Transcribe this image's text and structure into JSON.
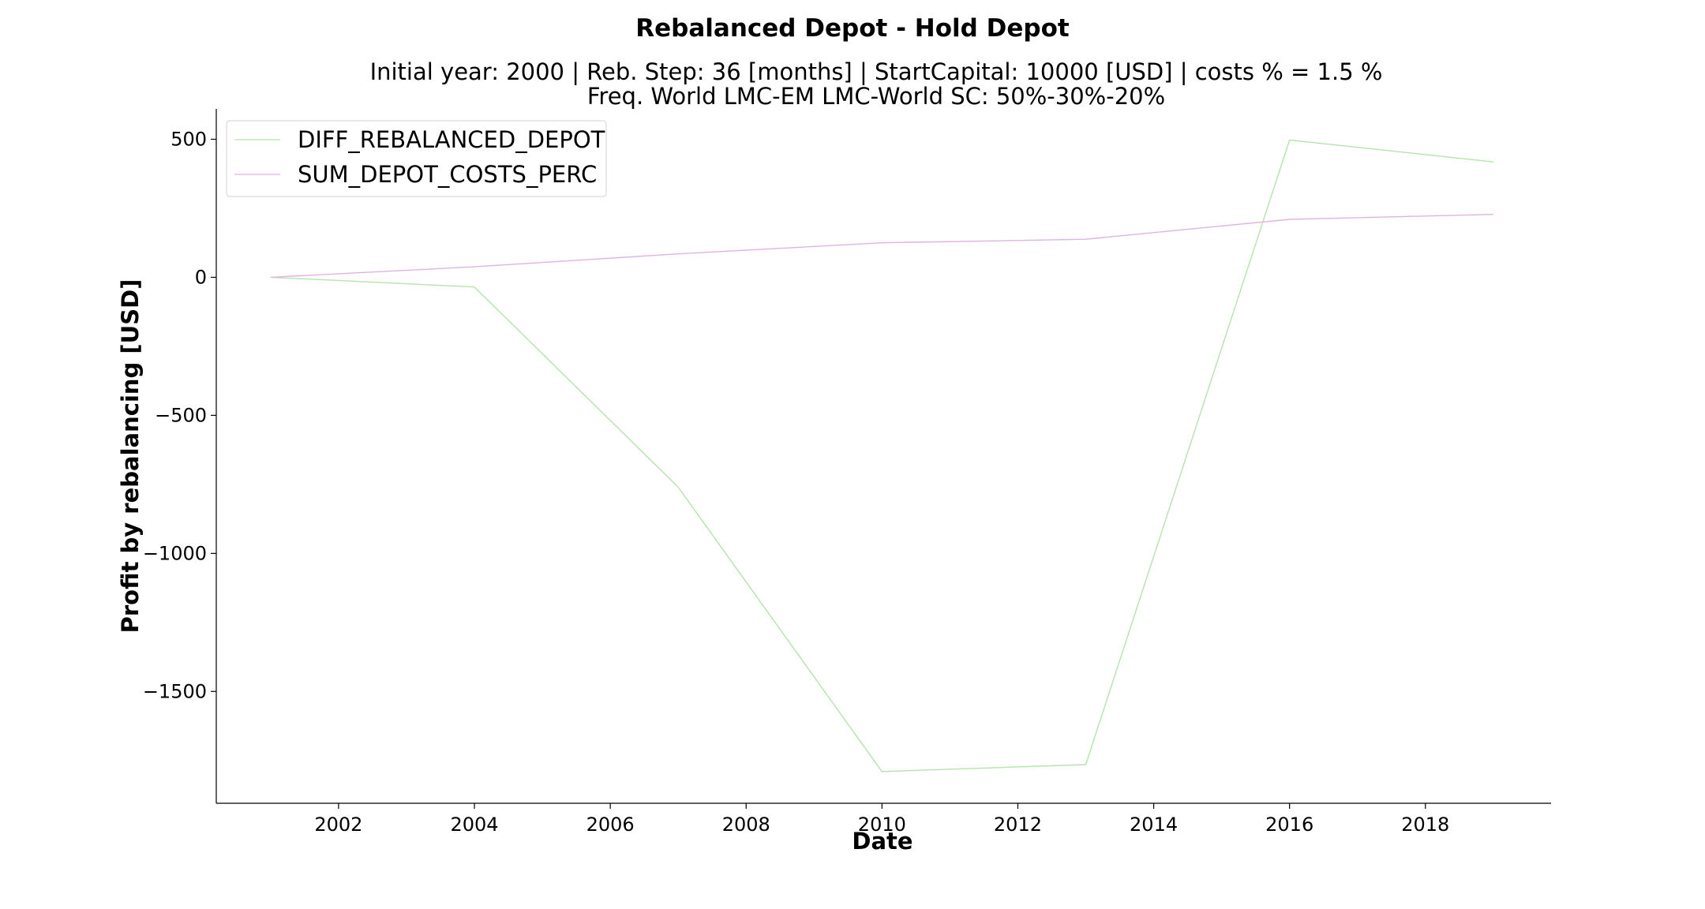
{
  "chart_data": {
    "type": "line",
    "title": "Rebalanced Depot - Hold Depot",
    "subtitle_lines": [
      "Initial year: 2000 | Reb. Step: 36 [months] | StartCapital: 10000 [USD] | costs % = 1.5 %",
      "Freq. World LMC-EM LMC-World SC: 50%-30%-20%"
    ],
    "xlabel": "Date",
    "ylabel": "Profit by rebalancing [USD]",
    "xlim": [
      2000.2,
      2019.85
    ],
    "ylim": [
      -1905,
      610
    ],
    "x_ticks": [
      2002,
      2004,
      2006,
      2008,
      2010,
      2012,
      2014,
      2016,
      2018
    ],
    "y_ticks": [
      500,
      0,
      -500,
      -1000,
      -1500
    ],
    "y_tick_labels": [
      "500",
      "0",
      "−500",
      "−1000",
      "−1500"
    ],
    "grid": false,
    "legend_position": "upper-left",
    "series": [
      {
        "name": "DIFF_REBALANCED_DEPOT",
        "color": "#b5e3ad",
        "x": [
          2001,
          2004,
          2007,
          2010,
          2013,
          2016,
          2019
        ],
        "y": [
          0,
          -35,
          -760,
          -1790,
          -1765,
          497,
          418
        ]
      },
      {
        "name": "SUM_DEPOT_COSTS_PERC",
        "color": "#dfb3e2",
        "x": [
          2001,
          2004,
          2007,
          2010,
          2013,
          2016,
          2019
        ],
        "y": [
          0,
          38,
          85,
          125,
          138,
          210,
          228
        ]
      }
    ]
  }
}
